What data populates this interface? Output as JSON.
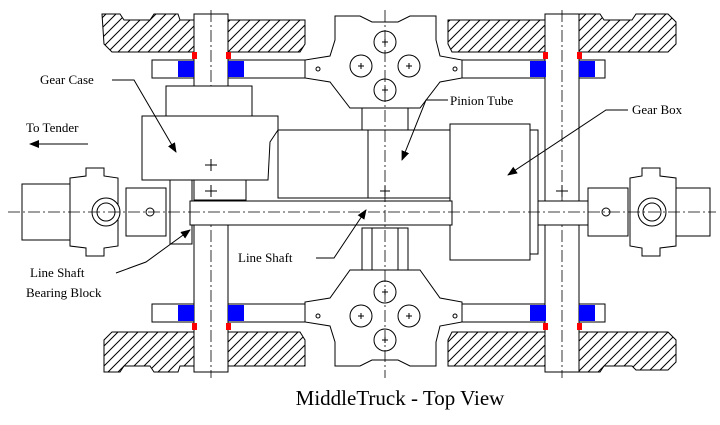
{
  "labels": {
    "gear_case": "Gear Case",
    "to_tender": "To Tender",
    "pinion_tube": "Pinion Tube",
    "gear_box": "Gear Box",
    "line_shaft": "Line Shaft",
    "line_shaft_bearing_line1": "Line Shaft",
    "line_shaft_bearing_line2": "Bearing Block"
  },
  "caption": "MiddleTruck - Top View",
  "colors": {
    "line": "#000000",
    "background": "#ffffff",
    "bearing_blue": "#0000ff",
    "marker_red": "#ff0000"
  }
}
